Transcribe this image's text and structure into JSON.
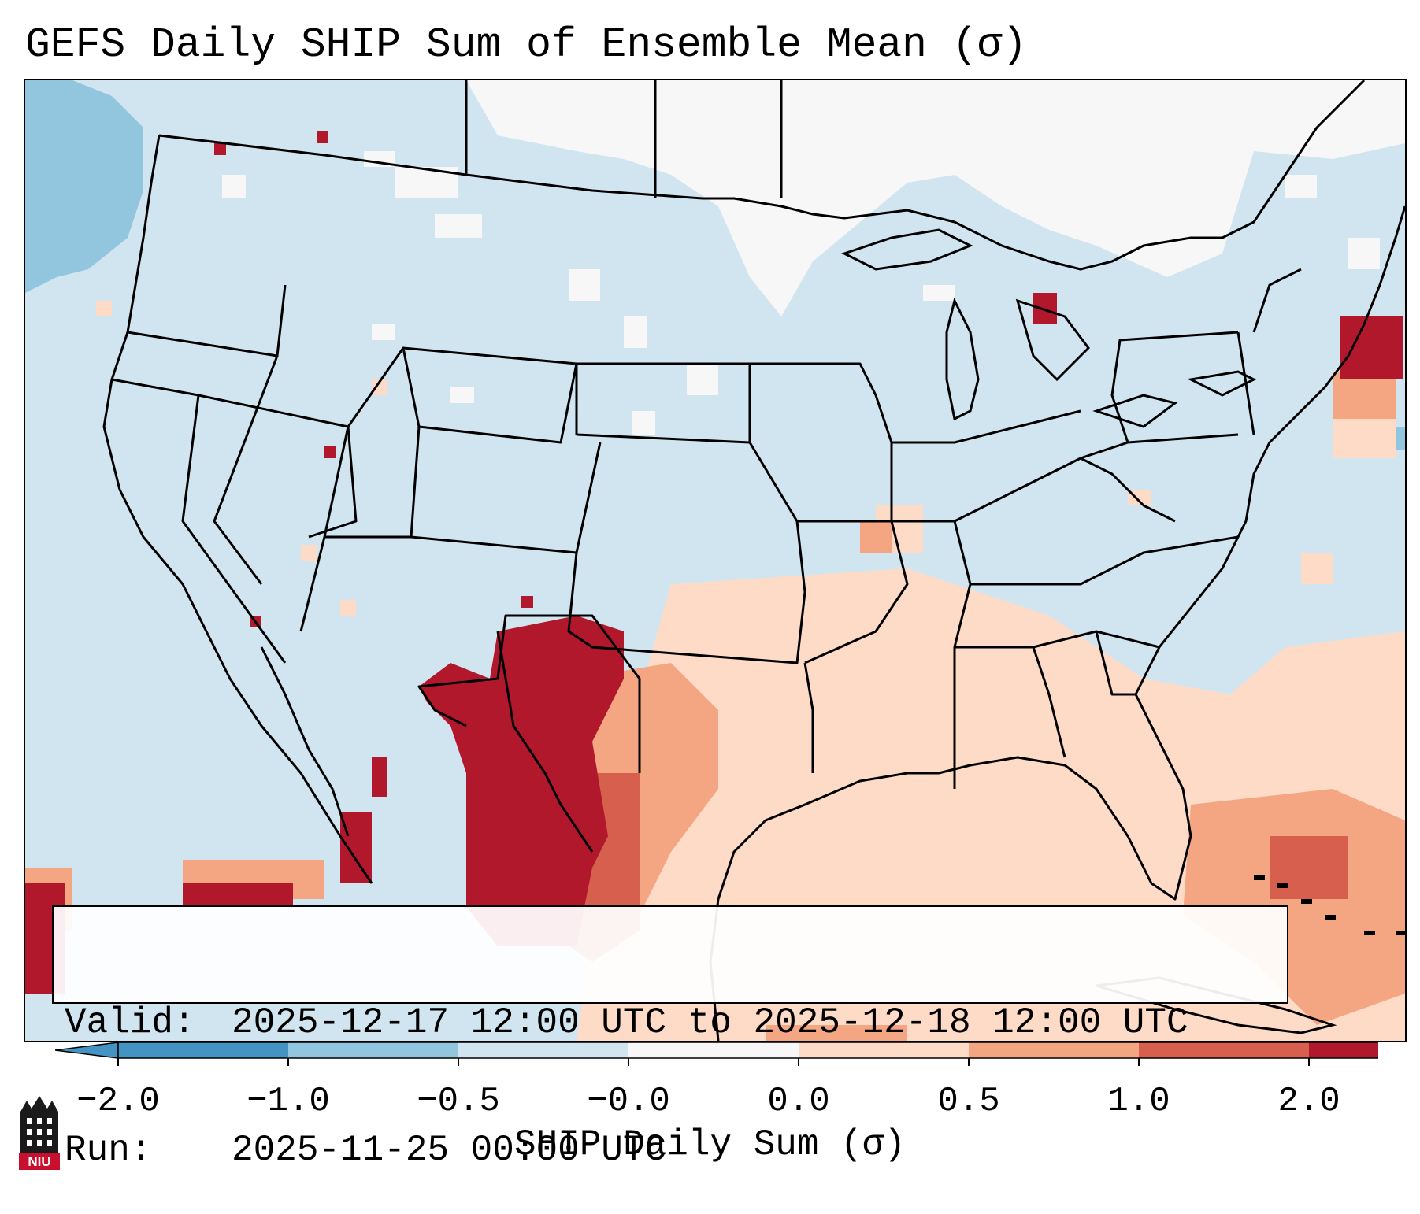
{
  "title": "GEFS Daily SHIP Sum of Ensemble Mean (σ)",
  "info": {
    "valid_label": "Valid:",
    "valid_value": "2025-12-17 12:00 UTC to 2025-12-18 12:00 UTC",
    "run_label": "Run:",
    "run_value": "2025-11-25 00:00 UTC"
  },
  "colorbar": {
    "label": "SHIP Daily Sum (σ)",
    "ticks": [
      "−2.0",
      "−1.0",
      "−0.5",
      "−0.0",
      "0.0",
      "0.5",
      "1.0",
      "2.0"
    ],
    "colors": [
      "#4393c3",
      "#92c5de",
      "#d1e5f0",
      "#f7f7f7",
      "#fddbc7",
      "#f4a582",
      "#d6604d",
      "#b2182b"
    ]
  },
  "logo": {
    "text": "NIU"
  }
}
